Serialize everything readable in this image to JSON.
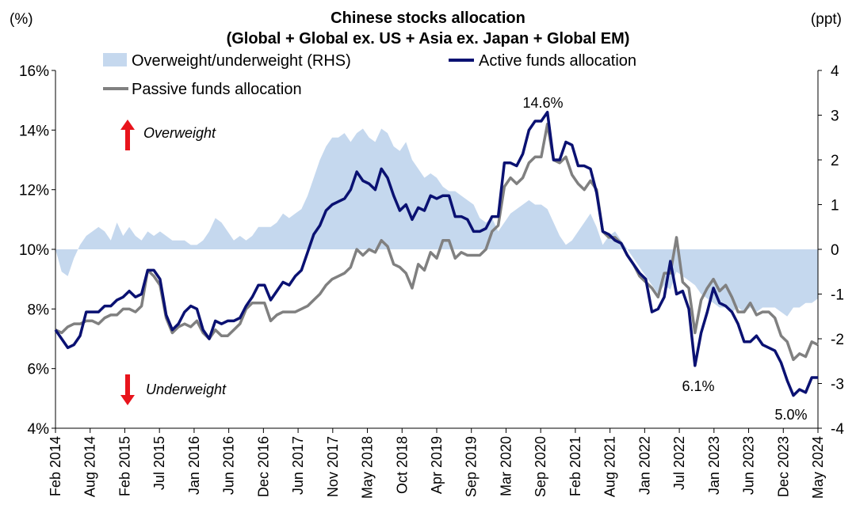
{
  "chart_data": {
    "type": "line",
    "title": "Chinese stocks allocation",
    "subtitle": "(Global + Global ex. US + Asia ex. Japan +  Global EM)",
    "left_unit": "(%)",
    "right_unit": "(ppt)",
    "ylim": [
      4,
      16
    ],
    "y_ticks": [
      "4%",
      "6%",
      "8%",
      "10%",
      "12%",
      "14%",
      "16%"
    ],
    "ylim_right": [
      -4,
      4
    ],
    "y_ticks_right": [
      "-4",
      "-3",
      "-2",
      "-1",
      "0",
      "1",
      "2",
      "3",
      "4"
    ],
    "right_negative_color": "#e8141c",
    "x_tick_labels": [
      "Feb 2014",
      "Aug 2014",
      "Feb 2015",
      "Jul 2015",
      "Jan 2016",
      "Jun 2016",
      "Dec 2016",
      "Jun 2017",
      "Nov 2017",
      "May 2018",
      "Oct 2018",
      "Apr 2019",
      "Sep 2019",
      "Mar 2020",
      "Sep 2020",
      "Feb 2021",
      "Aug 2021",
      "Jan 2022",
      "Jul 2022",
      "Jan 2023",
      "Jun 2023",
      "Dec 2023",
      "May 2024"
    ],
    "legend": {
      "overweight": "Overweight/underweight (RHS)",
      "active": "Active funds allocation",
      "passive": "Passive funds allocation"
    },
    "colors": {
      "active": "#0a1172",
      "passive": "#808080",
      "overweight": "#c5d8ee"
    },
    "annotations": {
      "peak": "14.6%",
      "low_2022": "6.1%",
      "low_2024": "5.0%"
    },
    "markers": {
      "over_label": "Overweight",
      "under_label": "Underweight",
      "arrow_color": "#e8141c"
    },
    "series": [
      {
        "name": "Active funds allocation",
        "values": [
          7.3,
          7.0,
          6.7,
          6.8,
          7.1,
          7.9,
          7.9,
          7.9,
          8.1,
          8.1,
          8.3,
          8.4,
          8.6,
          8.4,
          8.5,
          9.3,
          9.3,
          9.0,
          7.8,
          7.3,
          7.5,
          7.9,
          8.1,
          8.0,
          7.3,
          7.0,
          7.6,
          7.5,
          7.6,
          7.6,
          7.7,
          8.1,
          8.4,
          8.8,
          8.8,
          8.3,
          8.6,
          8.9,
          8.8,
          9.1,
          9.3,
          9.9,
          10.5,
          10.8,
          11.3,
          11.5,
          11.6,
          11.7,
          12.0,
          12.6,
          12.3,
          12.2,
          12.0,
          12.7,
          12.4,
          11.8,
          11.3,
          11.5,
          11.0,
          11.4,
          11.3,
          11.8,
          11.7,
          11.8,
          11.8,
          11.1,
          11.1,
          11.0,
          10.6,
          10.6,
          10.7,
          11.1,
          11.1,
          12.9,
          12.9,
          12.8,
          13.2,
          14.0,
          14.3,
          14.3,
          14.6,
          13.0,
          13.0,
          13.6,
          13.5,
          12.8,
          12.8,
          12.7,
          11.9,
          10.6,
          10.5,
          10.3,
          10.2,
          9.8,
          9.5,
          9.2,
          9.0,
          7.9,
          8.0,
          8.4,
          9.6,
          8.5,
          8.6,
          8.0,
          6.1,
          7.2,
          7.9,
          8.7,
          8.2,
          8.1,
          7.9,
          7.5,
          6.9,
          6.9,
          7.1,
          6.8,
          6.7,
          6.6,
          6.2,
          5.6,
          5.1,
          5.3,
          5.2,
          5.7,
          5.7
        ]
      },
      {
        "name": "Passive funds allocation",
        "values": [
          7.3,
          7.2,
          7.4,
          7.5,
          7.5,
          7.6,
          7.6,
          7.5,
          7.7,
          7.8,
          7.8,
          8.0,
          8.0,
          7.9,
          8.1,
          9.3,
          9.1,
          8.8,
          7.7,
          7.2,
          7.4,
          7.5,
          7.4,
          7.6,
          7.2,
          7.0,
          7.3,
          7.1,
          7.1,
          7.3,
          7.5,
          8.0,
          8.2,
          8.2,
          8.2,
          7.6,
          7.8,
          7.9,
          7.9,
          7.9,
          8.0,
          8.1,
          8.3,
          8.5,
          8.8,
          9.0,
          9.1,
          9.2,
          9.4,
          10.0,
          9.8,
          10.0,
          9.9,
          10.3,
          10.1,
          9.5,
          9.4,
          9.2,
          8.7,
          9.5,
          9.3,
          9.9,
          9.7,
          10.3,
          10.3,
          9.7,
          9.9,
          9.8,
          9.8,
          9.8,
          10.0,
          10.6,
          10.8,
          12.1,
          12.4,
          12.2,
          12.4,
          12.9,
          13.1,
          13.1,
          14.2,
          13.0,
          12.9,
          13.1,
          12.5,
          12.2,
          12.0,
          12.3,
          12.0,
          10.6,
          10.4,
          10.4,
          10.2,
          9.8,
          9.5,
          9.1,
          8.9,
          8.7,
          8.4,
          9.2,
          9.2,
          10.4,
          8.9,
          8.7,
          7.2,
          8.3,
          8.7,
          9.0,
          8.6,
          8.8,
          8.4,
          7.9,
          7.9,
          8.2,
          7.8,
          7.9,
          7.9,
          7.7,
          7.1,
          6.9,
          6.3,
          6.5,
          6.4,
          6.9,
          6.8
        ]
      },
      {
        "name": "Overweight/underweight (RHS)",
        "values": [
          0.0,
          -0.5,
          -0.6,
          -0.2,
          0.1,
          0.3,
          0.4,
          0.5,
          0.4,
          0.2,
          0.6,
          0.3,
          0.5,
          0.3,
          0.2,
          0.4,
          0.3,
          0.4,
          0.3,
          0.2,
          0.2,
          0.2,
          0.1,
          0.1,
          0.2,
          0.4,
          0.7,
          0.6,
          0.4,
          0.2,
          0.3,
          0.2,
          0.3,
          0.5,
          0.5,
          0.5,
          0.6,
          0.8,
          0.7,
          0.8,
          0.9,
          1.2,
          1.6,
          2.0,
          2.3,
          2.5,
          2.5,
          2.6,
          2.4,
          2.6,
          2.7,
          2.5,
          2.4,
          2.7,
          2.6,
          2.3,
          2.2,
          2.4,
          2.0,
          1.8,
          1.6,
          1.7,
          1.6,
          1.4,
          1.3,
          1.3,
          1.2,
          1.1,
          1.0,
          0.7,
          0.6,
          0.7,
          0.4,
          0.6,
          0.8,
          0.9,
          1.0,
          1.1,
          1.0,
          1.0,
          0.9,
          0.6,
          0.3,
          0.1,
          0.2,
          0.4,
          0.6,
          0.8,
          0.5,
          0.1,
          0.3,
          0.4,
          0.2,
          0.0,
          -0.2,
          -0.4,
          -0.6,
          -0.8,
          -1.0,
          -0.8,
          -0.9,
          -0.5,
          -0.6,
          -0.7,
          -0.8,
          -1.0,
          -1.1,
          -1.2,
          -1.3,
          -1.3,
          -1.4,
          -1.3,
          -1.4,
          -1.3,
          -1.4,
          -1.3,
          -1.3,
          -1.3,
          -1.4,
          -1.5,
          -1.3,
          -1.3,
          -1.2,
          -1.2,
          -1.1
        ]
      }
    ]
  }
}
